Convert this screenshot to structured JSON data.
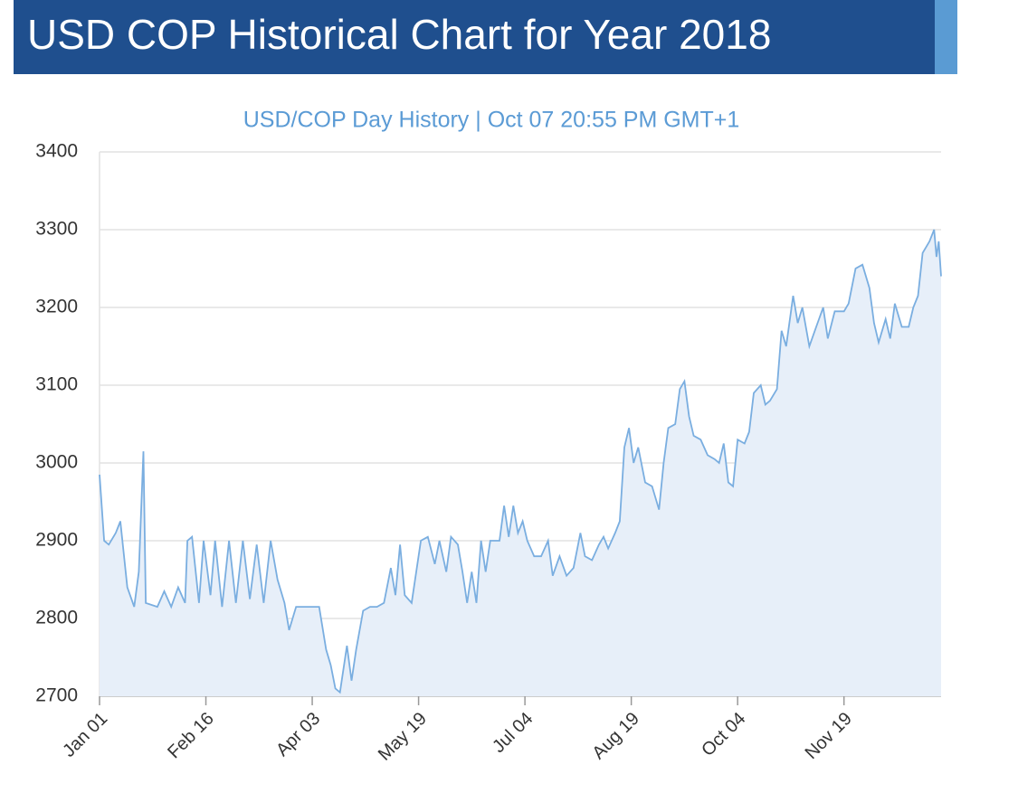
{
  "header": {
    "title": "USD COP Historical Chart for Year 2018"
  },
  "chart_data": {
    "type": "area",
    "title": "USD/COP  Day History | Oct 07 20:55 PM GMT+1",
    "x": [
      "Jan 01",
      "Jan 03",
      "Jan 05",
      "Jan 08",
      "Jan 10",
      "Jan 13",
      "Jan 16",
      "Jan 18",
      "Jan 20",
      "Jan 21",
      "Jan 26",
      "Jan 29",
      "Feb 01",
      "Feb 04",
      "Feb 07",
      "Feb 08",
      "Feb 10",
      "Feb 13",
      "Feb 15",
      "Feb 18",
      "Feb 20",
      "Feb 23",
      "Feb 26",
      "Mar 01",
      "Mar 04",
      "Mar 07",
      "Mar 10",
      "Mar 13",
      "Mar 16",
      "Mar 19",
      "Mar 22",
      "Mar 24",
      "Mar 27",
      "Mar 30",
      "Apr 03",
      "Apr 06",
      "Apr 09",
      "Apr 11",
      "Apr 13",
      "Apr 15",
      "Apr 18",
      "Apr 20",
      "Apr 22",
      "Apr 25",
      "Apr 28",
      "May 01",
      "May 04",
      "May 07",
      "May 09",
      "May 11",
      "May 13",
      "May 16",
      "May 20",
      "May 23",
      "May 26",
      "May 28",
      "May 31",
      "Jun 02",
      "Jun 05",
      "Jun 07",
      "Jun 09",
      "Jun 11",
      "Jun 13",
      "Jun 15",
      "Jun 17",
      "Jun 19",
      "Jun 23",
      "Jun 25",
      "Jun 27",
      "Jun 29",
      "Jul 01",
      "Jul 03",
      "Jul 05",
      "Jul 08",
      "Jul 11",
      "Jul 14",
      "Jul 16",
      "Jul 19",
      "Jul 22",
      "Jul 25",
      "Jul 28",
      "Jul 30",
      "Aug 02",
      "Aug 05",
      "Aug 07",
      "Aug 09",
      "Aug 12",
      "Aug 14",
      "Aug 16",
      "Aug 18",
      "Aug 20",
      "Aug 22",
      "Aug 25",
      "Aug 28",
      "Aug 31",
      "Sep 02",
      "Sep 04",
      "Sep 07",
      "Sep 09",
      "Sep 11",
      "Sep 13",
      "Sep 15",
      "Sep 18",
      "Sep 21",
      "Sep 24",
      "Sep 26",
      "Sep 28",
      "Sep 30",
      "Oct 02",
      "Oct 04",
      "Oct 07",
      "Oct 09",
      "Oct 11",
      "Oct 14",
      "Oct 16",
      "Oct 18",
      "Oct 21",
      "Oct 23",
      "Oct 25",
      "Oct 28",
      "Oct 30",
      "Nov 01",
      "Nov 04",
      "Nov 07",
      "Nov 10",
      "Nov 12",
      "Nov 15",
      "Nov 19",
      "Nov 21",
      "Nov 24",
      "Nov 27",
      "Nov 30",
      "Dec 02",
      "Dec 04",
      "Dec 07",
      "Dec 09",
      "Dec 11",
      "Dec 14",
      "Dec 17",
      "Dec 19",
      "Dec 21",
      "Dec 23",
      "Dec 26",
      "Dec 28",
      "Dec 29",
      "Dec 30",
      "Dec 31"
    ],
    "values": [
      2985,
      2900,
      2895,
      2910,
      2925,
      2840,
      2815,
      2860,
      3015,
      2820,
      2815,
      2835,
      2815,
      2840,
      2820,
      2900,
      2905,
      2820,
      2900,
      2830,
      2900,
      2815,
      2900,
      2820,
      2900,
      2825,
      2895,
      2820,
      2900,
      2850,
      2820,
      2785,
      2815,
      2815,
      2815,
      2815,
      2760,
      2740,
      2710,
      2705,
      2765,
      2720,
      2760,
      2810,
      2815,
      2815,
      2820,
      2865,
      2830,
      2895,
      2830,
      2820,
      2900,
      2905,
      2870,
      2900,
      2860,
      2905,
      2895,
      2860,
      2820,
      2860,
      2820,
      2900,
      2860,
      2900,
      2900,
      2945,
      2905,
      2945,
      2910,
      2925,
      2900,
      2880,
      2880,
      2900,
      2855,
      2880,
      2855,
      2865,
      2910,
      2880,
      2875,
      2895,
      2905,
      2890,
      2910,
      2925,
      3020,
      3045,
      3000,
      3020,
      2975,
      2970,
      2940,
      3000,
      3045,
      3050,
      3095,
      3105,
      3060,
      3035,
      3030,
      3010,
      3005,
      3000,
      3025,
      2975,
      2970,
      3030,
      3025,
      3040,
      3090,
      3100,
      3075,
      3080,
      3095,
      3170,
      3150,
      3215,
      3180,
      3200,
      3150,
      3175,
      3200,
      3160,
      3195,
      3195,
      3205,
      3250,
      3255,
      3225,
      3180,
      3155,
      3185,
      3160,
      3205,
      3175,
      3175,
      3200,
      3215,
      3270,
      3285,
      3300,
      3265,
      3285,
      3240
    ],
    "color": "#7aaee0",
    "fill": "#e7eff9",
    "xlim": [
      "Jan 01",
      "Dec 31"
    ],
    "xticks": [
      "Jan 01",
      "Feb 16",
      "Apr 03",
      "May 19",
      "Jul 04",
      "Aug 19",
      "Oct 04",
      "Nov 19"
    ],
    "ylim": [
      2700,
      3400
    ],
    "yticks": [
      2700,
      2800,
      2900,
      3000,
      3100,
      3200,
      3300,
      3400
    ],
    "grid": true
  }
}
